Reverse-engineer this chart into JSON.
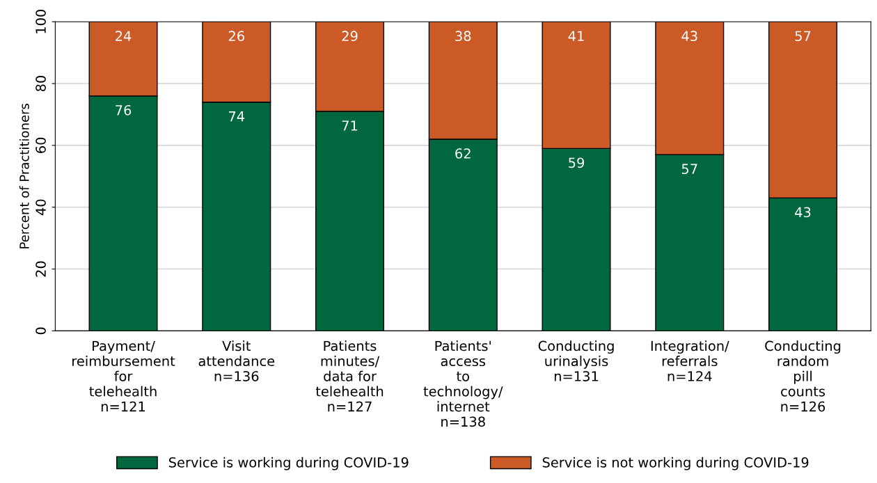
{
  "chart_data": {
    "type": "bar",
    "stacked": true,
    "ylabel": "Percent of Practitioners",
    "categories": [
      "Payment/\nreimbursement\nfor\ntelehealth\nn=121",
      "Visit\nattendance\nn=136",
      "Patients\nminutes/\ndata for\ntelehealth\nn=127",
      "Patients'\naccess\nto\ntechnology/\ninternet\nn=138",
      "Conducting\nurinalysis\nn=131",
      "Integration/\nreferrals\nn=124",
      "Conducting\nrandom\npill\ncounts\nn=126"
    ],
    "series": [
      {
        "name": "Service is working during COVID-19",
        "color": "#00673f",
        "values": [
          76,
          74,
          71,
          62,
          59,
          57,
          43
        ]
      },
      {
        "name": "Service is not working during COVID-19",
        "color": "#cc5a27",
        "values": [
          24,
          26,
          29,
          38,
          41,
          43,
          57
        ]
      }
    ],
    "ylim": [
      0,
      100
    ],
    "yticks": [
      0,
      20,
      40,
      60,
      80,
      100
    ],
    "grid": "y",
    "legend": "bottom",
    "data_labels": true
  }
}
